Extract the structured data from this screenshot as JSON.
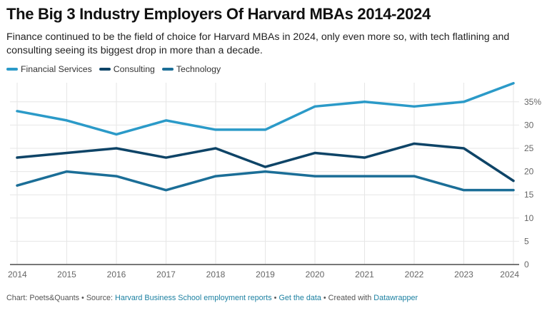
{
  "header": {
    "title": "The Big 3 Industry Employers Of Harvard MBAs 2014-2024",
    "subtitle": "Finance continued to be the field of choice for Harvard MBAs in 2024, only even more so, with tech flatlining and consulting seeing its biggest drop in more than a decade."
  },
  "footer": {
    "chart_credit": "Chart: Poets&Quants",
    "sep1": " • ",
    "source_prefix": "Source: ",
    "source_link": "Harvard Business School employment reports",
    "sep2": " • ",
    "get_data": "Get the data",
    "sep3": " • ",
    "created_with": "Created with ",
    "datawrapper": "Datawrapper"
  },
  "chart_data": {
    "type": "line",
    "title": "The Big 3 Industry Employers Of Harvard MBAs 2014-2024",
    "xlabel": "",
    "ylabel": "",
    "x": [
      "2014",
      "2015",
      "2016",
      "2017",
      "2018",
      "2019",
      "2020",
      "2021",
      "2022",
      "2023",
      "2024"
    ],
    "ylim": [
      0,
      39
    ],
    "yticks": [
      0,
      5,
      10,
      15,
      20,
      25,
      30,
      35
    ],
    "ytick_labels": [
      "0",
      "5",
      "10",
      "15",
      "20",
      "25",
      "30",
      "35%"
    ],
    "grid": true,
    "legend_position": "top-left",
    "series": [
      {
        "name": "Financial Services",
        "color": "#2b9ac8",
        "values": [
          33,
          31,
          28,
          31,
          29,
          29,
          34,
          35,
          34,
          35,
          39
        ]
      },
      {
        "name": "Consulting",
        "color": "#0e4467",
        "values": [
          23,
          24,
          25,
          23,
          25,
          21,
          24,
          23,
          26,
          25,
          18
        ]
      },
      {
        "name": "Technology",
        "color": "#1b6e97",
        "values": [
          17,
          20,
          19,
          16,
          19,
          20,
          19,
          19,
          19,
          16,
          16
        ]
      }
    ]
  }
}
